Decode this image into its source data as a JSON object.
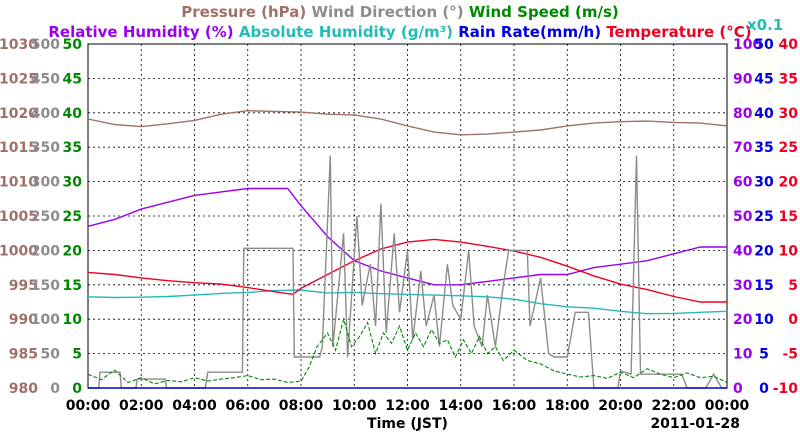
{
  "chart_data": {
    "type": "line",
    "date_label": "2011-01-28",
    "xlabel": "Time (JST)",
    "x_ticks": [
      "00:00",
      "02:00",
      "04:00",
      "06:00",
      "08:00",
      "10:00",
      "12:00",
      "14:00",
      "16:00",
      "18:00",
      "20:00",
      "22:00",
      "00:00"
    ],
    "legend_row1": [
      {
        "text": "Pressure (hPa)",
        "color": "#a0706a"
      },
      {
        "text": "Wind Direction (°)",
        "color": "#8c8c8c"
      },
      {
        "text": "Wind Speed (m/s)",
        "color": "#008800"
      }
    ],
    "legend_row2": [
      {
        "text": "Relative Humidity (%)",
        "color": "#9900ee"
      },
      {
        "text": "Absolute Humidity (g/m³)",
        "color": "#22bbbb"
      },
      {
        "text": "Rain Rate(mm/h)",
        "color": "#0000dd"
      },
      {
        "text": "Temperature (°C)",
        "color": "#ee0022"
      }
    ],
    "scale_note": {
      "text": "x0.1",
      "color": "#22bbbb"
    },
    "axes": {
      "pressure": {
        "color": "#a0706a",
        "min": 980,
        "max": 1030,
        "labels": [
          "980",
          "985",
          "990",
          "995",
          "1000",
          "1005",
          "1010",
          "1015",
          "1020",
          "1025",
          "1030"
        ]
      },
      "wind_direction": {
        "color": "#8c8c8c",
        "min": 0,
        "max": 500,
        "labels": [
          "0",
          "50",
          "100",
          "150",
          "200",
          "250",
          "300",
          "350",
          "400",
          "450",
          "500"
        ]
      },
      "wind_speed": {
        "color": "#008800",
        "min": 0,
        "max": 50,
        "labels": [
          "0",
          "5",
          "10",
          "15",
          "20",
          "25",
          "30",
          "35",
          "40",
          "45",
          "50"
        ]
      },
      "relative_humidity": {
        "color": "#9900ee",
        "min": 0,
        "max": 100,
        "labels": [
          "0",
          "10",
          "20",
          "30",
          "40",
          "50",
          "60",
          "70",
          "80",
          "90",
          "100"
        ]
      },
      "rain_rate": {
        "color": "#0000dd",
        "min": 0,
        "max": 50,
        "labels": [
          "0",
          "5",
          "10",
          "15",
          "20",
          "25",
          "30",
          "35",
          "40",
          "45",
          "50"
        ]
      },
      "temperature": {
        "color": "#ee0022",
        "min": -10,
        "max": 40,
        "labels": [
          "-10",
          "-5",
          "0",
          "5",
          "10",
          "15",
          "20",
          "25",
          "30",
          "35",
          "40"
        ]
      }
    },
    "grid": true,
    "series": [
      {
        "name": "Pressure (hPa)",
        "axis": "pressure",
        "color": "#a0706a",
        "points": [
          [
            0,
            1019.1
          ],
          [
            1,
            1018.3
          ],
          [
            2,
            1018.0
          ],
          [
            3,
            1018.4
          ],
          [
            4,
            1018.9
          ],
          [
            5,
            1019.8
          ],
          [
            6,
            1020.3
          ],
          [
            7,
            1020.2
          ],
          [
            8,
            1020.1
          ],
          [
            9,
            1019.8
          ],
          [
            10,
            1019.7
          ],
          [
            11,
            1019.1
          ],
          [
            12,
            1018.1
          ],
          [
            13,
            1017.2
          ],
          [
            14,
            1016.8
          ],
          [
            15,
            1016.9
          ],
          [
            16,
            1017.2
          ],
          [
            17,
            1017.5
          ],
          [
            18,
            1018.1
          ],
          [
            19,
            1018.5
          ],
          [
            20,
            1018.7
          ],
          [
            21,
            1018.8
          ],
          [
            22,
            1018.6
          ],
          [
            23,
            1018.5
          ],
          [
            24,
            1018.1
          ]
        ]
      },
      {
        "name": "Relative Humidity (%)",
        "axis": "relative_humidity",
        "color": "#9900ee",
        "points": [
          [
            0,
            47
          ],
          [
            1,
            49
          ],
          [
            2,
            52
          ],
          [
            3,
            54
          ],
          [
            4,
            56
          ],
          [
            5,
            57
          ],
          [
            6,
            58
          ],
          [
            7,
            58
          ],
          [
            7.5,
            58
          ],
          [
            8,
            53
          ],
          [
            9,
            44
          ],
          [
            10,
            37
          ],
          [
            11,
            34
          ],
          [
            12,
            32
          ],
          [
            13,
            30
          ],
          [
            14,
            30
          ],
          [
            15,
            31
          ],
          [
            16,
            32
          ],
          [
            17,
            33
          ],
          [
            18,
            33
          ],
          [
            19,
            35
          ],
          [
            20,
            36
          ],
          [
            21,
            37
          ],
          [
            22,
            39
          ],
          [
            23,
            41
          ],
          [
            24,
            41
          ]
        ]
      },
      {
        "name": "Absolute Humidity (g/m³)",
        "axis": "relative_humidity",
        "color": "#22bbbb",
        "points": [
          [
            0,
            26.5
          ],
          [
            1,
            26.3
          ],
          [
            2,
            26.4
          ],
          [
            3,
            26.6
          ],
          [
            4,
            27.0
          ],
          [
            5,
            27.5
          ],
          [
            6,
            27.8
          ],
          [
            7,
            28.3
          ],
          [
            8,
            28.5
          ],
          [
            9,
            27.6
          ],
          [
            10,
            27.8
          ],
          [
            11,
            27.4
          ],
          [
            12,
            27.2
          ],
          [
            13,
            27.0
          ],
          [
            14,
            26.8
          ],
          [
            15,
            26.5
          ],
          [
            16,
            25.8
          ],
          [
            17,
            24.5
          ],
          [
            18,
            23.6
          ],
          [
            19,
            23.2
          ],
          [
            20,
            22.3
          ],
          [
            21,
            21.6
          ],
          [
            22,
            21.7
          ],
          [
            23,
            22.0
          ],
          [
            24,
            22.3
          ]
        ]
      },
      {
        "name": "Temperature (°C)",
        "axis": "temperature",
        "color": "#ee0022",
        "points": [
          [
            0,
            6.8
          ],
          [
            1,
            6.5
          ],
          [
            2,
            6.0
          ],
          [
            3,
            5.6
          ],
          [
            4,
            5.3
          ],
          [
            5,
            5.1
          ],
          [
            6,
            4.6
          ],
          [
            7,
            4.0
          ],
          [
            7.7,
            3.6
          ],
          [
            8,
            4.5
          ],
          [
            9,
            6.5
          ],
          [
            10,
            8.5
          ],
          [
            11,
            10.2
          ],
          [
            12,
            11.2
          ],
          [
            13,
            11.6
          ],
          [
            14,
            11.2
          ],
          [
            15,
            10.6
          ],
          [
            16,
            9.9
          ],
          [
            17,
            9.0
          ],
          [
            18,
            7.7
          ],
          [
            19,
            6.3
          ],
          [
            20,
            5.1
          ],
          [
            21,
            4.3
          ],
          [
            22,
            3.3
          ],
          [
            23,
            2.5
          ],
          [
            24,
            2.5
          ]
        ]
      },
      {
        "name": "Wind Direction (°)",
        "axis": "wind_direction",
        "color": "#8c8c8c",
        "points": [
          [
            0,
            0
          ],
          [
            0.4,
            0
          ],
          [
            0.45,
            23
          ],
          [
            1.2,
            23
          ],
          [
            1.25,
            0
          ],
          [
            1.8,
            0
          ],
          [
            1.85,
            13
          ],
          [
            2.9,
            13
          ],
          [
            2.95,
            0
          ],
          [
            4.4,
            0
          ],
          [
            4.5,
            23
          ],
          [
            5.8,
            23
          ],
          [
            5.85,
            203
          ],
          [
            7.7,
            203
          ],
          [
            7.75,
            45
          ],
          [
            8.7,
            45
          ],
          [
            8.8,
            60
          ],
          [
            9.1,
            338
          ],
          [
            9.2,
            60
          ],
          [
            9.6,
            225
          ],
          [
            9.75,
            45
          ],
          [
            10.1,
            250
          ],
          [
            10.3,
            120
          ],
          [
            10.6,
            180
          ],
          [
            10.8,
            90
          ],
          [
            11.0,
            268
          ],
          [
            11.2,
            80
          ],
          [
            11.5,
            225
          ],
          [
            11.7,
            110
          ],
          [
            12.0,
            200
          ],
          [
            12.2,
            70
          ],
          [
            12.5,
            170
          ],
          [
            12.7,
            90
          ],
          [
            13.0,
            135
          ],
          [
            13.2,
            60
          ],
          [
            13.5,
            180
          ],
          [
            13.7,
            120
          ],
          [
            14.0,
            100
          ],
          [
            14.3,
            200
          ],
          [
            14.5,
            90
          ],
          [
            14.8,
            60
          ],
          [
            15.0,
            135
          ],
          [
            15.3,
            60
          ],
          [
            15.6,
            150
          ],
          [
            15.8,
            200
          ],
          [
            16.5,
            200
          ],
          [
            16.6,
            90
          ],
          [
            17.0,
            160
          ],
          [
            17.3,
            50
          ],
          [
            17.5,
            45
          ],
          [
            18.0,
            45
          ],
          [
            18.3,
            110
          ],
          [
            18.8,
            110
          ],
          [
            19.0,
            0
          ],
          [
            19.9,
            0
          ],
          [
            20.0,
            25
          ],
          [
            20.4,
            20
          ],
          [
            20.6,
            338
          ],
          [
            20.75,
            20
          ],
          [
            21.5,
            20
          ],
          [
            22.3,
            20
          ],
          [
            22.5,
            0
          ],
          [
            23.2,
            0
          ],
          [
            23.5,
            20
          ],
          [
            23.8,
            0
          ],
          [
            24,
            0
          ]
        ]
      },
      {
        "name": "Wind Speed (m/s)",
        "axis": "wind_speed",
        "color": "#008800",
        "points": [
          [
            0,
            2.0
          ],
          [
            0.5,
            1.2
          ],
          [
            1,
            2.6
          ],
          [
            1.5,
            0.8
          ],
          [
            2,
            1.5
          ],
          [
            2.5,
            0.6
          ],
          [
            3,
            1.1
          ],
          [
            3.5,
            0.9
          ],
          [
            4,
            1.5
          ],
          [
            4.5,
            1.0
          ],
          [
            5,
            1.3
          ],
          [
            5.5,
            1.5
          ],
          [
            6,
            1.8
          ],
          [
            6.5,
            1.2
          ],
          [
            7,
            1.3
          ],
          [
            7.5,
            0.8
          ],
          [
            8,
            1.0
          ],
          [
            8.3,
            3.0
          ],
          [
            8.6,
            6.0
          ],
          [
            9,
            8.0
          ],
          [
            9.3,
            5.5
          ],
          [
            9.6,
            10.0
          ],
          [
            9.9,
            6.0
          ],
          [
            10.2,
            7.5
          ],
          [
            10.5,
            9.5
          ],
          [
            10.8,
            5.0
          ],
          [
            11.1,
            8.0
          ],
          [
            11.4,
            6.5
          ],
          [
            11.7,
            9.0
          ],
          [
            12.0,
            5.5
          ],
          [
            12.3,
            8.0
          ],
          [
            12.6,
            6.0
          ],
          [
            12.9,
            8.5
          ],
          [
            13.2,
            6.5
          ],
          [
            13.5,
            7.0
          ],
          [
            13.8,
            4.5
          ],
          [
            14.1,
            7.0
          ],
          [
            14.4,
            5.0
          ],
          [
            14.7,
            7.5
          ],
          [
            15.0,
            5.0
          ],
          [
            15.3,
            6.0
          ],
          [
            15.6,
            4.0
          ],
          [
            16.0,
            5.5
          ],
          [
            16.5,
            4.0
          ],
          [
            17.0,
            3.5
          ],
          [
            17.5,
            2.5
          ],
          [
            18.0,
            2.0
          ],
          [
            18.5,
            1.6
          ],
          [
            19.0,
            1.8
          ],
          [
            19.5,
            1.4
          ],
          [
            20.0,
            2.3
          ],
          [
            20.5,
            1.5
          ],
          [
            21.0,
            2.8
          ],
          [
            21.5,
            2.0
          ],
          [
            22.0,
            1.5
          ],
          [
            22.5,
            2.2
          ],
          [
            23.0,
            1.5
          ],
          [
            23.5,
            1.7
          ],
          [
            24,
            0.8
          ]
        ]
      },
      {
        "name": "Rain Rate(mm/h)",
        "axis": "rain_rate",
        "color": "#0000dd",
        "points": [
          [
            0,
            0
          ],
          [
            24,
            0
          ]
        ]
      }
    ]
  }
}
